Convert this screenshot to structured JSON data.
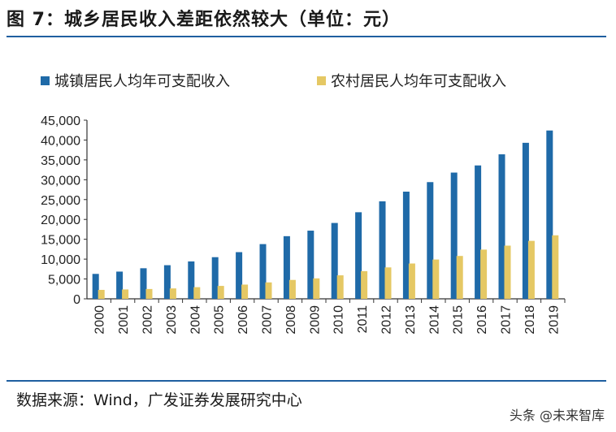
{
  "title": "图 7：城乡居民收入差距依然较大（单位：元）",
  "source": "数据来源：Wind，广发证券发展研究中心",
  "watermark": "头条 @未来智库",
  "chart_data": {
    "type": "bar",
    "title": "",
    "xlabel": "",
    "ylabel": "",
    "ylim": [
      0,
      45000
    ],
    "yticks": [
      "0",
      "5,000",
      "10,000",
      "15,000",
      "20,000",
      "25,000",
      "30,000",
      "35,000",
      "40,000",
      "45,000"
    ],
    "grid": false,
    "legend": "top",
    "categories": [
      "2000",
      "2001",
      "2002",
      "2003",
      "2004",
      "2005",
      "2006",
      "2007",
      "2008",
      "2009",
      "2010",
      "2011",
      "2012",
      "2013",
      "2014",
      "2015",
      "2016",
      "2017",
      "2018",
      "2019"
    ],
    "series": [
      {
        "name": "城镇居民人均年可支配收入",
        "color": "#1f6aa8",
        "values": [
          6280,
          6860,
          7703,
          8472,
          9422,
          10493,
          11759,
          13786,
          15781,
          17175,
          19109,
          21810,
          24565,
          27000,
          29400,
          31800,
          33600,
          36400,
          39300,
          42400
        ]
      },
      {
        "name": "农村居民人均年可支配收入",
        "color": "#e5c864",
        "values": [
          2253,
          2366,
          2476,
          2622,
          2936,
          3255,
          3587,
          4140,
          4761,
          5153,
          5919,
          6977,
          7917,
          8900,
          9900,
          10800,
          12400,
          13400,
          14600,
          16000
        ]
      }
    ]
  }
}
